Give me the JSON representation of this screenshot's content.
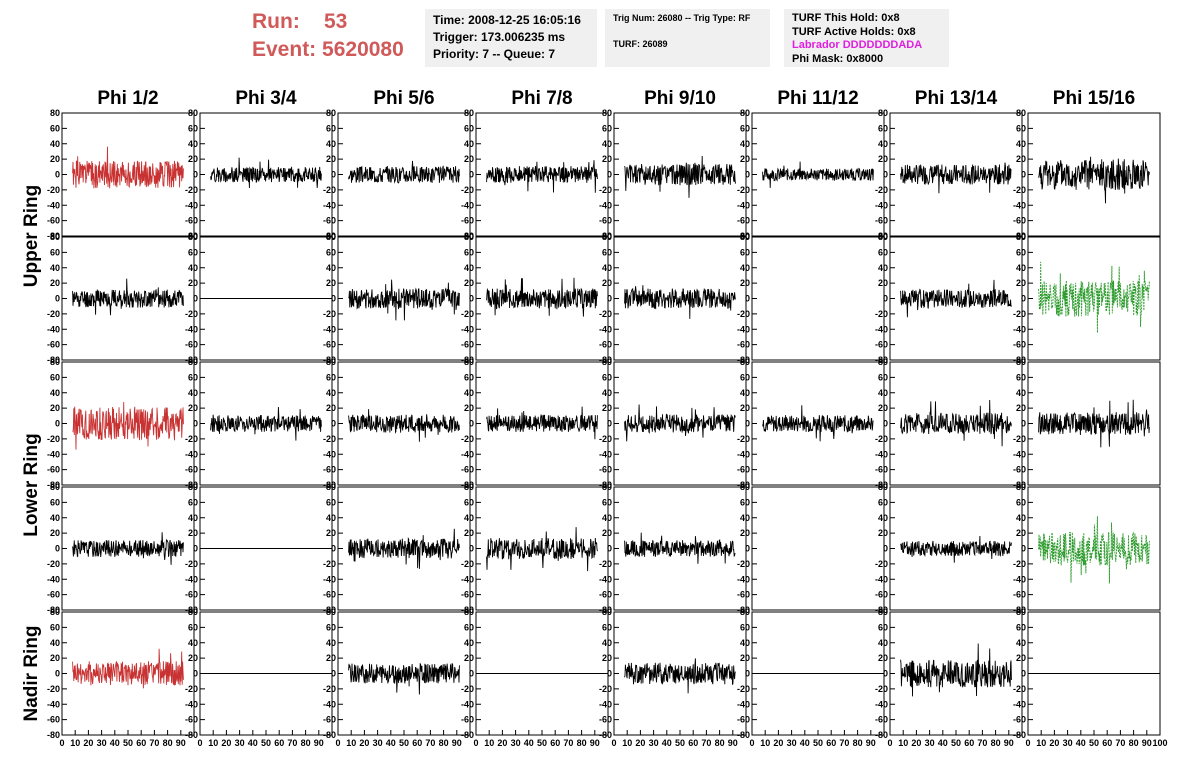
{
  "header": {
    "run_label": "Run:",
    "run_value": "53",
    "event_label": "Event:",
    "event_value": "5620080"
  },
  "info_time": {
    "time": "Time: 2008-12-25 16:05:16",
    "trigger": "Trigger: 173.006235 ms",
    "priority": "Priority: 7 -- Queue: 7"
  },
  "info_trig": {
    "trig": "Trig Num: 26080 -- Trig Type: RF",
    "turf": "TURF: 26089"
  },
  "info_turf": {
    "hold": "TURF This Hold: 0x8",
    "active": "TURF Active Holds: 0x8",
    "labrador": "Labrador DDDDDDDADA",
    "phimask": "Phi Mask: 0x8000"
  },
  "colors": {
    "red": "#c83232",
    "black": "#000000",
    "green": "#2a9a2a",
    "accent": "#d05a5a",
    "magenta": "#e01ee0"
  },
  "chart_data": {
    "type": "line",
    "columns": [
      "Phi 1/2",
      "Phi 3/4",
      "Phi 5/6",
      "Phi 7/8",
      "Phi 9/10",
      "Phi 11/12",
      "Phi 13/14",
      "Phi 15/16"
    ],
    "rows": [
      "Upper Ring",
      "Lower Ring",
      "Nadir Ring"
    ],
    "xlim": [
      0,
      100
    ],
    "ylim": [
      -80,
      80
    ],
    "y_ticks": [
      "80",
      "60",
      "40",
      "20",
      "0",
      "-20",
      "-40",
      "-60",
      "-80"
    ],
    "x_ticks": [
      "0",
      "10",
      "20",
      "30",
      "40",
      "50",
      "60",
      "70",
      "80",
      "90",
      "100"
    ],
    "panels": [
      [
        {
          "style": "red",
          "amp": 18,
          "seed": 1
        },
        {
          "style": "black",
          "amp": 10,
          "seed": 2
        },
        {
          "style": "black",
          "amp": 11,
          "seed": 3
        },
        {
          "style": "black",
          "amp": 11,
          "seed": 4
        },
        {
          "style": "black",
          "amp": 14,
          "seed": 5
        },
        {
          "style": "black",
          "amp": 8,
          "seed": 6
        },
        {
          "style": "black",
          "amp": 13,
          "seed": 7
        },
        {
          "style": "black",
          "amp": 20,
          "seed": 8
        }
      ],
      [
        {
          "style": "black",
          "amp": 12,
          "seed": 11
        },
        {
          "style": "flat",
          "amp": 0,
          "seed": 12
        },
        {
          "style": "black",
          "amp": 13,
          "seed": 13
        },
        {
          "style": "black",
          "amp": 13,
          "seed": 14
        },
        {
          "style": "black",
          "amp": 13,
          "seed": 15
        },
        {
          "style": "empty",
          "amp": 0,
          "seed": 16
        },
        {
          "style": "black",
          "amp": 12,
          "seed": 17
        },
        {
          "style": "green",
          "amp": 24,
          "seed": 18
        }
      ],
      [
        {
          "style": "red",
          "amp": 22,
          "seed": 21
        },
        {
          "style": "black",
          "amp": 11,
          "seed": 22
        },
        {
          "style": "black",
          "amp": 12,
          "seed": 23
        },
        {
          "style": "black",
          "amp": 11,
          "seed": 24
        },
        {
          "style": "black",
          "amp": 12,
          "seed": 25
        },
        {
          "style": "black",
          "amp": 11,
          "seed": 26
        },
        {
          "style": "black",
          "amp": 14,
          "seed": 27
        },
        {
          "style": "black",
          "amp": 15,
          "seed": 28
        }
      ],
      [
        {
          "style": "black",
          "amp": 11,
          "seed": 31
        },
        {
          "style": "flat",
          "amp": 0,
          "seed": 32
        },
        {
          "style": "black",
          "amp": 13,
          "seed": 33
        },
        {
          "style": "black",
          "amp": 14,
          "seed": 34
        },
        {
          "style": "black",
          "amp": 11,
          "seed": 35
        },
        {
          "style": "empty",
          "amp": 0,
          "seed": 36
        },
        {
          "style": "black",
          "amp": 10,
          "seed": 37
        },
        {
          "style": "green",
          "amp": 22,
          "seed": 38
        }
      ],
      [
        {
          "style": "red",
          "amp": 16,
          "seed": 41
        },
        {
          "style": "flat",
          "amp": 0,
          "seed": 42
        },
        {
          "style": "black",
          "amp": 13,
          "seed": 43
        },
        {
          "style": "flat",
          "amp": 0,
          "seed": 44
        },
        {
          "style": "black",
          "amp": 14,
          "seed": 45
        },
        {
          "style": "flat",
          "amp": 0,
          "seed": 46
        },
        {
          "style": "black",
          "amp": 18,
          "seed": 47
        },
        {
          "style": "flat",
          "amp": 0,
          "seed": 48
        }
      ]
    ]
  }
}
